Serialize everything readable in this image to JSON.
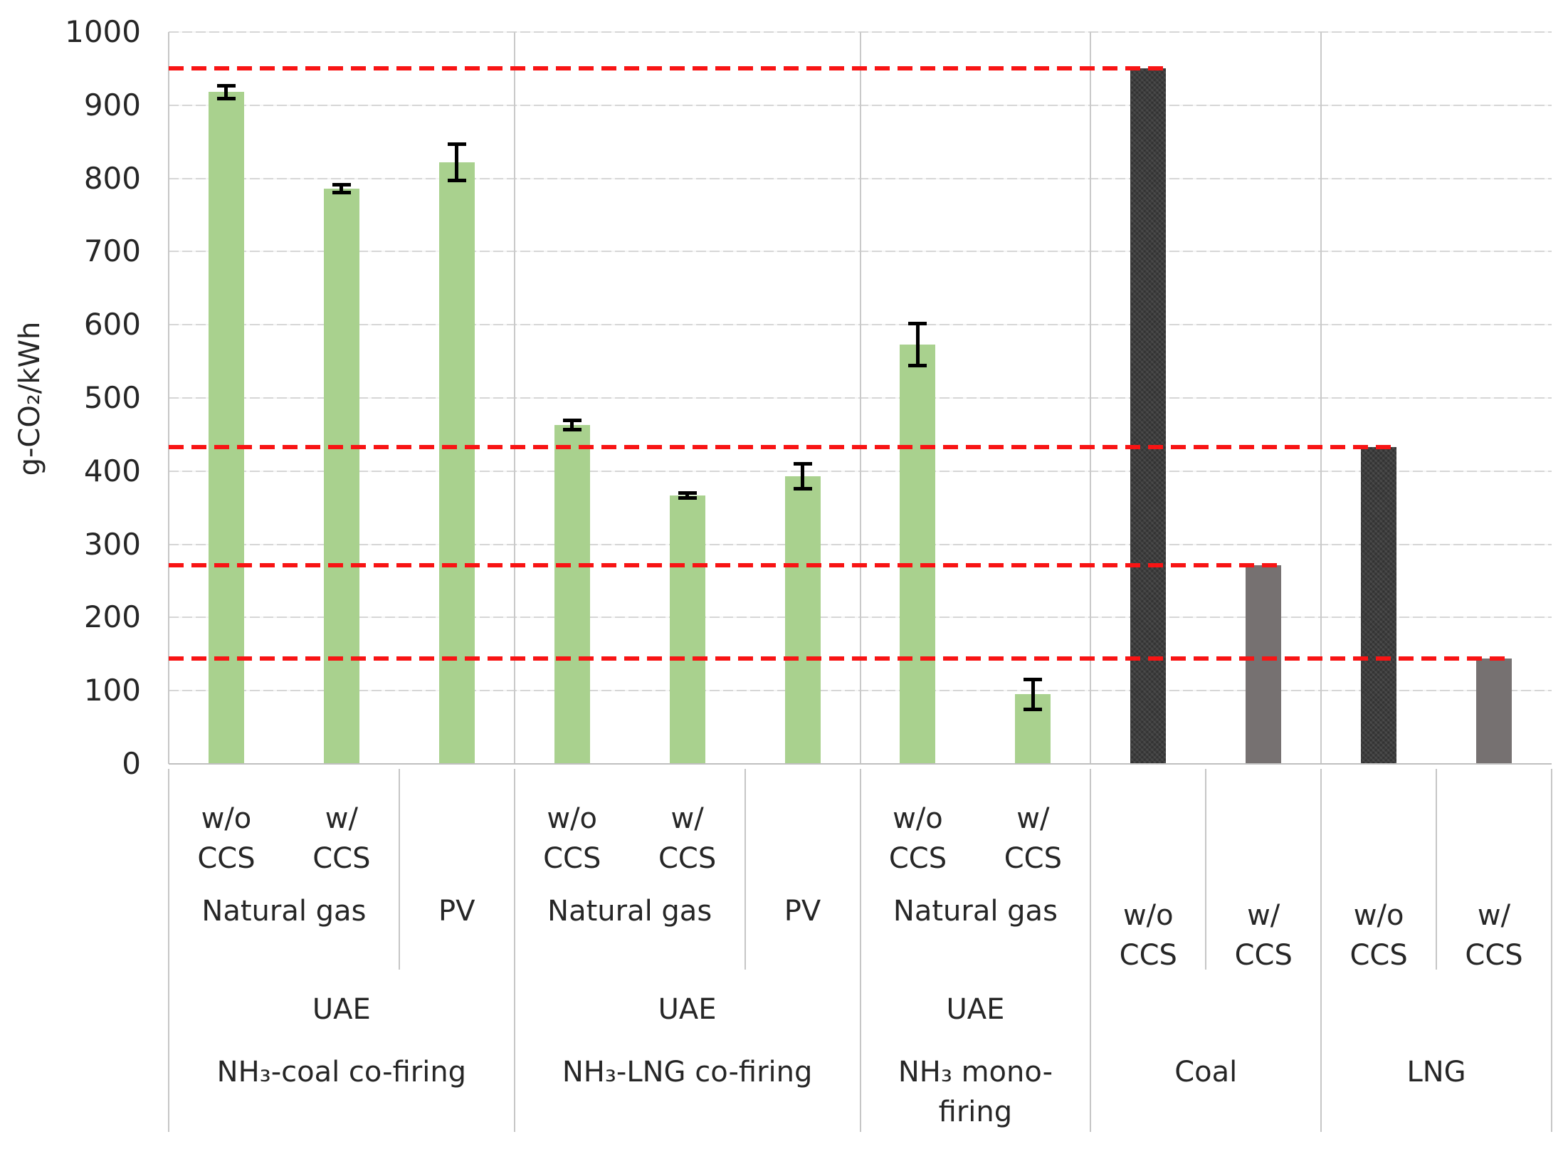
{
  "chart_data": {
    "type": "bar",
    "title": "",
    "ylabel": "g-CO₂/kWh",
    "xlabel": "",
    "ylim": [
      0,
      1000
    ],
    "ytick_step": 100,
    "grid": true,
    "legend_position": "none",
    "colors": {
      "ammonia_bar": "#a9d18e",
      "fossil_dark_bar": "#3d3d3d",
      "fossil_gray_bar": "#767171",
      "reference_line": "#f81414",
      "gridline": "#d6d6d6",
      "axis_line": "#bfbfbf",
      "text": "#262626"
    },
    "groups": [
      {
        "bottom_label": "NH₃-coal co-firing",
        "region": "UAE",
        "ccs_label_position": "upper",
        "fuel_cells": [
          {
            "label": "Natural gas",
            "span": 2
          },
          {
            "label": "PV",
            "span": 1
          }
        ],
        "bars": [
          {
            "ccs": "w/o\nCCS",
            "fuel": "Natural gas",
            "value": 918,
            "error": 11,
            "color": "ammonia"
          },
          {
            "ccs": "w/\nCCS",
            "fuel": "Natural gas",
            "value": 786,
            "error": 8,
            "color": "ammonia"
          },
          {
            "ccs": "",
            "fuel": "PV",
            "value": 822,
            "error": 27,
            "color": "ammonia"
          }
        ]
      },
      {
        "bottom_label": "NH₃-LNG co-firing",
        "region": "UAE",
        "ccs_label_position": "upper",
        "fuel_cells": [
          {
            "label": "Natural gas",
            "span": 2
          },
          {
            "label": "PV",
            "span": 1
          }
        ],
        "bars": [
          {
            "ccs": "w/o\nCCS",
            "fuel": "Natural gas",
            "value": 463,
            "error": 9,
            "color": "ammonia"
          },
          {
            "ccs": "w/\nCCS",
            "fuel": "Natural gas",
            "value": 367,
            "error": 6,
            "color": "ammonia"
          },
          {
            "ccs": "",
            "fuel": "PV",
            "value": 393,
            "error": 19,
            "color": "ammonia"
          }
        ]
      },
      {
        "bottom_label": "NH₃ mono-\nfiring",
        "region": "UAE",
        "ccs_label_position": "upper",
        "fuel_cells": [
          {
            "label": "Natural gas",
            "span": 2
          }
        ],
        "bars": [
          {
            "ccs": "w/o\nCCS",
            "fuel": "Natural gas",
            "value": 573,
            "error": 31,
            "color": "ammonia"
          },
          {
            "ccs": "w/\nCCS",
            "fuel": "Natural gas",
            "value": 95,
            "error": 23,
            "color": "ammonia"
          }
        ]
      },
      {
        "bottom_label": "Coal",
        "region": "",
        "ccs_label_position": "lower",
        "fuel_cells": [],
        "bars": [
          {
            "ccs": "w/o\nCCS",
            "fuel": "Coal",
            "value": 950,
            "error": 0,
            "color": "fossil_dark"
          },
          {
            "ccs": "w/\nCCS",
            "fuel": "Coal",
            "value": 271,
            "error": 0,
            "color": "fossil_gray"
          }
        ]
      },
      {
        "bottom_label": "LNG",
        "region": "",
        "ccs_label_position": "lower",
        "fuel_cells": [],
        "bars": [
          {
            "ccs": "w/o\nCCS",
            "fuel": "LNG",
            "value": 433,
            "error": 0,
            "color": "fossil_dark"
          },
          {
            "ccs": "w/\nCCS",
            "fuel": "LNG",
            "value": 144,
            "error": 0,
            "color": "fossil_gray"
          }
        ]
      }
    ],
    "reference_lines": [
      {
        "value": 950,
        "ends_at_slot": 8
      },
      {
        "value": 433,
        "ends_at_slot": 10
      },
      {
        "value": 271,
        "ends_at_slot": 9
      },
      {
        "value": 144,
        "ends_at_slot": 11
      }
    ]
  }
}
